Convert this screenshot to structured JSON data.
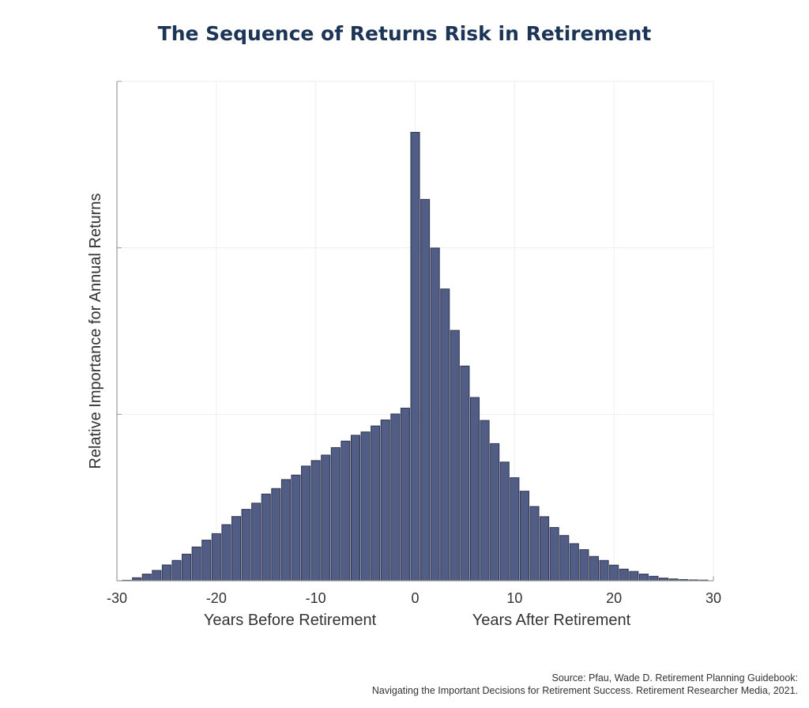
{
  "chart_data": {
    "type": "bar",
    "title": "The Sequence of Returns Risk in Retirement",
    "ylabel": "Relative Importance for Annual Returns",
    "xlabel_left": "Years Before Retirement",
    "xlabel_right": "Years After Retirement",
    "xlim": [
      -30,
      30
    ],
    "ylim": [
      0,
      3
    ],
    "xticks": [
      -30,
      -20,
      -10,
      0,
      10,
      20,
      30
    ],
    "grid": true,
    "bar_color": "#515d85",
    "x": [
      -29,
      -28,
      -27,
      -26,
      -25,
      -24,
      -23,
      -22,
      -21,
      -20,
      -19,
      -18,
      -17,
      -16,
      -15,
      -14,
      -13,
      -12,
      -11,
      -10,
      -9,
      -8,
      -7,
      -6,
      -5,
      -4,
      -3,
      -2,
      -1,
      0,
      1,
      2,
      3,
      4,
      5,
      6,
      7,
      8,
      9,
      10,
      11,
      12,
      13,
      14,
      15,
      16,
      17,
      18,
      19,
      20,
      21,
      22,
      23,
      24,
      25,
      26,
      27,
      28,
      29
    ],
    "values": [
      0.003,
      0.018,
      0.04,
      0.062,
      0.095,
      0.122,
      0.16,
      0.203,
      0.244,
      0.283,
      0.337,
      0.386,
      0.429,
      0.466,
      0.521,
      0.554,
      0.608,
      0.635,
      0.689,
      0.722,
      0.755,
      0.8,
      0.839,
      0.874,
      0.894,
      0.93,
      0.966,
      1.002,
      1.037,
      2.694,
      2.291,
      1.999,
      1.753,
      1.504,
      1.29,
      1.101,
      0.963,
      0.824,
      0.713,
      0.619,
      0.538,
      0.446,
      0.385,
      0.32,
      0.272,
      0.223,
      0.187,
      0.146,
      0.122,
      0.094,
      0.07,
      0.056,
      0.04,
      0.027,
      0.016,
      0.011,
      0.007,
      0.005,
      0.004
    ]
  },
  "source": {
    "line1": "Source: Pfau, Wade D. Retirement Planning Guidebook:",
    "line2": "Navigating the Important Decisions for Retirement Success. Retirement Researcher Media, 2021."
  }
}
